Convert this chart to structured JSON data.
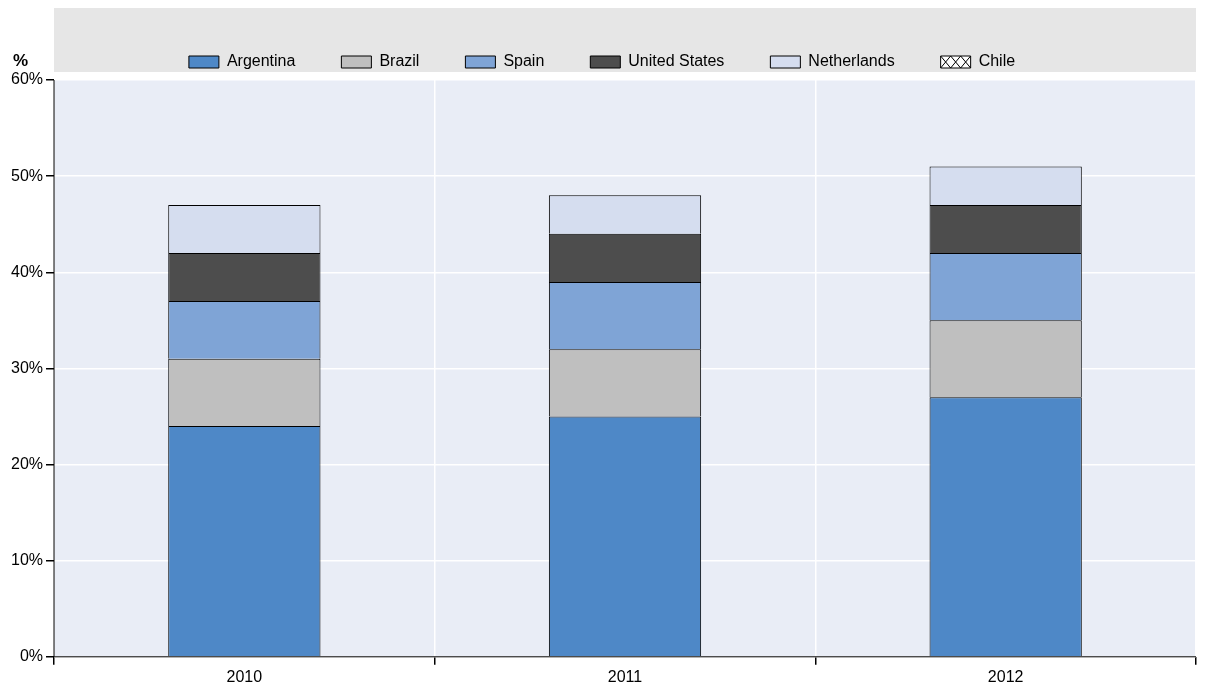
{
  "chart_data": {
    "type": "bar",
    "stacked": true,
    "ylabel": "%",
    "categories": [
      "2010",
      "2011",
      "2012"
    ],
    "series": [
      {
        "name": "Argentina",
        "color": "#4e88c7",
        "values": [
          24,
          25,
          27
        ]
      },
      {
        "name": "Brazil",
        "color": "#bfbfbf",
        "values": [
          7,
          7,
          8
        ]
      },
      {
        "name": "Spain",
        "color": "#7fa4d6",
        "values": [
          6,
          7,
          7
        ]
      },
      {
        "name": "United States",
        "color": "#4d4d4d",
        "values": [
          5,
          5,
          5
        ]
      },
      {
        "name": "Netherlands",
        "color": "#d5ddef",
        "values": [
          5,
          4,
          4
        ]
      },
      {
        "name": "Chile",
        "color": "#ffffff",
        "values": [
          0,
          0,
          0
        ]
      }
    ],
    "ylim": [
      0,
      60
    ],
    "yticks": [
      {
        "value": 0,
        "label": "0%"
      },
      {
        "value": 10,
        "label": "10%"
      },
      {
        "value": 20,
        "label": "20%"
      },
      {
        "value": 30,
        "label": "30%"
      },
      {
        "value": 40,
        "label": "40%"
      },
      {
        "value": 50,
        "label": "50%"
      },
      {
        "value": 60,
        "label": "60%"
      }
    ],
    "grid": true,
    "legend": "top"
  }
}
